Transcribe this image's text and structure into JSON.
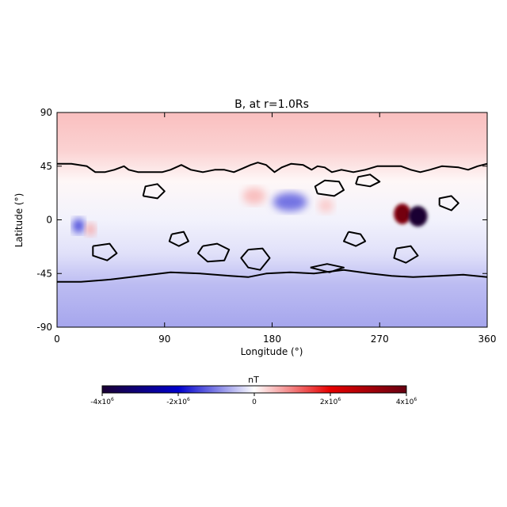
{
  "chart_data": {
    "type": "heatmap",
    "title": "B, at r=1.0Rs",
    "xlabel": "Longitude (°)",
    "ylabel": "Latitude (°)",
    "xlim": [
      0,
      360
    ],
    "ylim": [
      -90,
      90
    ],
    "xticks": [
      "0",
      "90",
      "180",
      "270",
      "360"
    ],
    "yticks": [
      "90",
      "45",
      "0",
      "-45",
      "-90"
    ],
    "x_tick_values": [
      0,
      90,
      180,
      270,
      360
    ],
    "y_tick_values": [
      90,
      45,
      0,
      -45,
      -90
    ],
    "colorbar": {
      "label": "nT",
      "min": -4000000,
      "max": 4000000,
      "ticks": [
        "-4x10",
        "-2x10",
        "0",
        "2x10",
        "4x10"
      ],
      "tick_exponents": [
        "6",
        "6",
        "",
        "6",
        "6"
      ],
      "tick_values": [
        -4000000,
        -2000000,
        0,
        2000000,
        4000000
      ],
      "colormap": [
        "#1a0033",
        "#0000cc",
        "#ffffff",
        "#e60000",
        "#660011"
      ]
    },
    "background": {
      "north_polar_value": 500000,
      "south_polar_value": -700000
    },
    "features": [
      {
        "name": "strong-positive",
        "lon": 289,
        "lat": 5,
        "value": 3600000
      },
      {
        "name": "strong-negative",
        "lon": 302,
        "lat": 3,
        "value": -4000000
      },
      {
        "name": "negative-blob",
        "lon": 195,
        "lat": 15,
        "value": -1100000
      },
      {
        "name": "positive-blob",
        "lon": 165,
        "lat": 20,
        "value": 500000
      },
      {
        "name": "negative-spot",
        "lon": 18,
        "lat": -5,
        "value": -1500000
      },
      {
        "name": "positive-spot",
        "lon": 28,
        "lat": -8,
        "value": 700000
      },
      {
        "name": "positive-blob-2",
        "lon": 225,
        "lat": 12,
        "value": 400000
      }
    ],
    "polarity_inversion_contours": [
      [
        [
          0,
          47
        ],
        [
          12,
          47
        ],
        [
          25,
          45
        ],
        [
          32,
          40
        ],
        [
          40,
          40
        ],
        [
          48,
          42
        ],
        [
          56,
          45
        ],
        [
          60,
          42
        ],
        [
          68,
          40
        ],
        [
          78,
          40
        ],
        [
          88,
          40
        ],
        [
          95,
          42
        ],
        [
          104,
          46
        ],
        [
          112,
          42
        ],
        [
          122,
          40
        ],
        [
          132,
          42
        ],
        [
          140,
          42
        ],
        [
          148,
          40
        ],
        [
          155,
          43
        ],
        [
          162,
          46
        ],
        [
          168,
          48
        ],
        [
          175,
          46
        ],
        [
          182,
          40
        ],
        [
          188,
          44
        ],
        [
          196,
          47
        ],
        [
          206,
          46
        ],
        [
          213,
          42
        ],
        [
          218,
          45
        ],
        [
          224,
          44
        ],
        [
          230,
          40
        ],
        [
          238,
          42
        ],
        [
          248,
          40
        ],
        [
          258,
          42
        ],
        [
          268,
          45
        ],
        [
          278,
          45
        ],
        [
          288,
          45
        ],
        [
          296,
          42
        ],
        [
          304,
          40
        ],
        [
          312,
          42
        ],
        [
          322,
          45
        ],
        [
          336,
          44
        ],
        [
          344,
          42
        ],
        [
          352,
          45
        ],
        [
          360,
          47
        ]
      ],
      [
        [
          0,
          -52
        ],
        [
          20,
          -52
        ],
        [
          45,
          -50
        ],
        [
          70,
          -47
        ],
        [
          95,
          -44
        ],
        [
          120,
          -45
        ],
        [
          145,
          -47
        ],
        [
          160,
          -48
        ],
        [
          175,
          -45
        ],
        [
          195,
          -44
        ],
        [
          215,
          -45
        ],
        [
          240,
          -42
        ],
        [
          262,
          -45
        ],
        [
          280,
          -47
        ],
        [
          298,
          -48
        ],
        [
          320,
          -47
        ],
        [
          340,
          -46
        ],
        [
          360,
          -48
        ]
      ],
      [
        [
          122,
          -22
        ],
        [
          134,
          -20
        ],
        [
          144,
          -25
        ],
        [
          140,
          -34
        ],
        [
          126,
          -35
        ],
        [
          118,
          -28
        ],
        [
          122,
          -22
        ]
      ],
      [
        [
          160,
          -25
        ],
        [
          172,
          -24
        ],
        [
          178,
          -32
        ],
        [
          170,
          -42
        ],
        [
          160,
          -40
        ],
        [
          154,
          -32
        ],
        [
          160,
          -25
        ]
      ],
      [
        [
          212,
          -40
        ],
        [
          226,
          -37
        ],
        [
          240,
          -40
        ],
        [
          228,
          -44
        ],
        [
          212,
          -40
        ]
      ],
      [
        [
          284,
          -24
        ],
        [
          296,
          -22
        ],
        [
          302,
          -30
        ],
        [
          292,
          -36
        ],
        [
          282,
          -32
        ],
        [
          284,
          -24
        ]
      ],
      [
        [
          218,
          22
        ],
        [
          232,
          20
        ],
        [
          240,
          25
        ],
        [
          236,
          32
        ],
        [
          224,
          33
        ],
        [
          216,
          28
        ],
        [
          218,
          22
        ]
      ],
      [
        [
          250,
          30
        ],
        [
          262,
          28
        ],
        [
          270,
          32
        ],
        [
          262,
          38
        ],
        [
          252,
          36
        ],
        [
          250,
          30
        ]
      ],
      [
        [
          244,
          -10
        ],
        [
          254,
          -12
        ],
        [
          258,
          -18
        ],
        [
          250,
          -22
        ],
        [
          240,
          -18
        ],
        [
          244,
          -10
        ]
      ],
      [
        [
          320,
          12
        ],
        [
          330,
          8
        ],
        [
          336,
          14
        ],
        [
          330,
          20
        ],
        [
          320,
          18
        ],
        [
          320,
          12
        ]
      ],
      [
        [
          72,
          20
        ],
        [
          84,
          18
        ],
        [
          90,
          24
        ],
        [
          84,
          30
        ],
        [
          74,
          28
        ],
        [
          72,
          20
        ]
      ],
      [
        [
          30,
          -22
        ],
        [
          44,
          -20
        ],
        [
          50,
          -28
        ],
        [
          42,
          -34
        ],
        [
          30,
          -30
        ],
        [
          30,
          -22
        ]
      ],
      [
        [
          96,
          -12
        ],
        [
          106,
          -10
        ],
        [
          110,
          -18
        ],
        [
          102,
          -22
        ],
        [
          94,
          -18
        ],
        [
          96,
          -12
        ]
      ]
    ]
  }
}
